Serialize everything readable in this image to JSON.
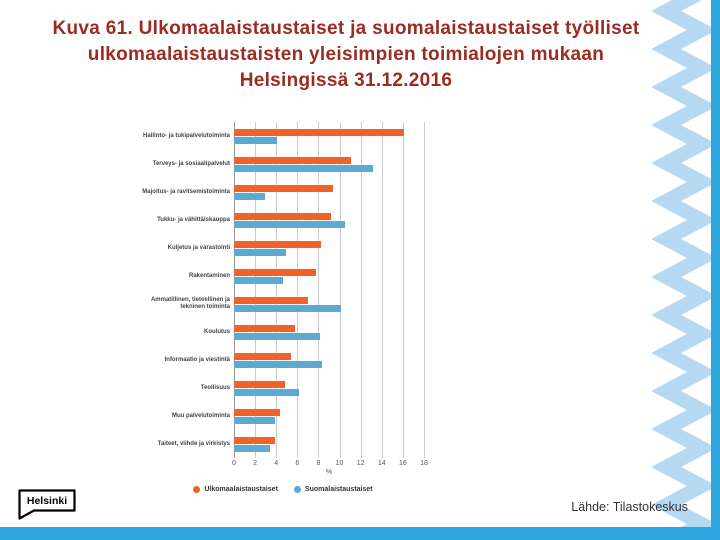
{
  "slide": {
    "title": "Kuva 61. Ulkomaalaistaustaiset ja suomalaistaustaiset työlliset ulkomaalaistaustaisten yleisimpien toimialojen mukaan Helsingissä 31.12.2016",
    "source": "Lähde: Tilastokeskus",
    "logo_text": "Helsinki"
  },
  "colors": {
    "title_text": "#9b2c22",
    "accent_blue": "#2ca6dd",
    "zigzag_blue": "#b5d9f2",
    "foreign_bar": "#f16226",
    "finnish_bar": "#5da9d3",
    "gridline": "#cccccc"
  },
  "chart_data": {
    "type": "bar",
    "orientation": "horizontal",
    "title": "",
    "categories": [
      "Hallinto- ja tukipalvelutoiminta",
      "Terveys- ja sosiaalipalvelut",
      "Majoitus- ja ravitsemistoiminta",
      "Tukku- ja vähittäiskauppa",
      "Kuljetus ja varastointi",
      "Rakentaminen",
      "Ammatillinen, tieteellinen ja tekninen toiminta",
      "Koulutus",
      "Informaatio ja viestintä",
      "Teollisuus",
      "Muu palvelutoiminta",
      "Taiteet, viihde ja virkistys"
    ],
    "series": [
      {
        "name": "Ulkomaalaistaustaiset",
        "color": "#f16226",
        "values": [
          16.1,
          11.1,
          9.4,
          9.2,
          8.2,
          7.8,
          7.0,
          5.8,
          5.4,
          4.8,
          4.4,
          3.9
        ]
      },
      {
        "name": "Suomalaistaustaiset",
        "color": "#5da9d3",
        "values": [
          4.1,
          13.2,
          2.9,
          10.5,
          4.9,
          4.6,
          10.1,
          8.1,
          8.3,
          6.2,
          3.9,
          3.4
        ]
      }
    ],
    "xlabel": "%",
    "xlim": [
      0,
      18
    ],
    "xticks": [
      0,
      2,
      4,
      6,
      8,
      10,
      12,
      14,
      16,
      18
    ],
    "grid": true,
    "legend_position": "bottom"
  }
}
